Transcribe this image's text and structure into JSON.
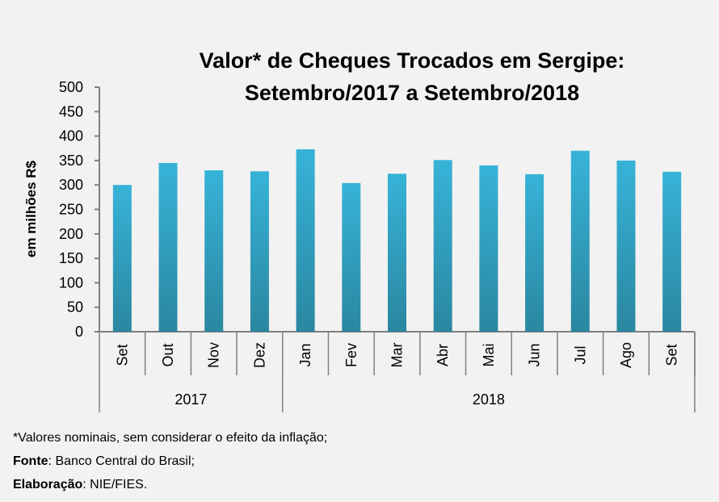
{
  "chart_data": {
    "type": "bar",
    "title": [
      "Valor* de Cheques Trocados em Sergipe:",
      "Setembro/2017 a Setembro/2018"
    ],
    "xlabel": "",
    "ylabel": "em milhões R$",
    "ylim": [
      0,
      500
    ],
    "yticks": [
      "0",
      "50",
      "100",
      "150",
      "200",
      "250",
      "300",
      "350",
      "400",
      "450",
      "500"
    ],
    "categories": [
      "Set",
      "Out",
      "Nov",
      "Dez",
      "Jan",
      "Fev",
      "Mar",
      "Abr",
      "Mai",
      "Jun",
      "Jul",
      "Ago",
      "Set"
    ],
    "groups": [
      {
        "label": "2017",
        "count": 4
      },
      {
        "label": "2018",
        "count": 9
      }
    ],
    "values": [
      300,
      345,
      330,
      328,
      373,
      304,
      323,
      351,
      340,
      322,
      370,
      350,
      327
    ],
    "grid": false,
    "colors": {
      "bar_top": "#37b3d8",
      "bar_bottom": "#2a87a0",
      "axis": "#7f7f7f",
      "background": "#f2f2f2"
    }
  },
  "notes": {
    "line1": "*Valores nominais, sem considerar o efeito da inflação;",
    "source_label": "Fonte",
    "source_text": ": Banco Central do Brasil;",
    "elab_label": "Elaboração",
    "elab_text": ": NIE/FIES."
  }
}
